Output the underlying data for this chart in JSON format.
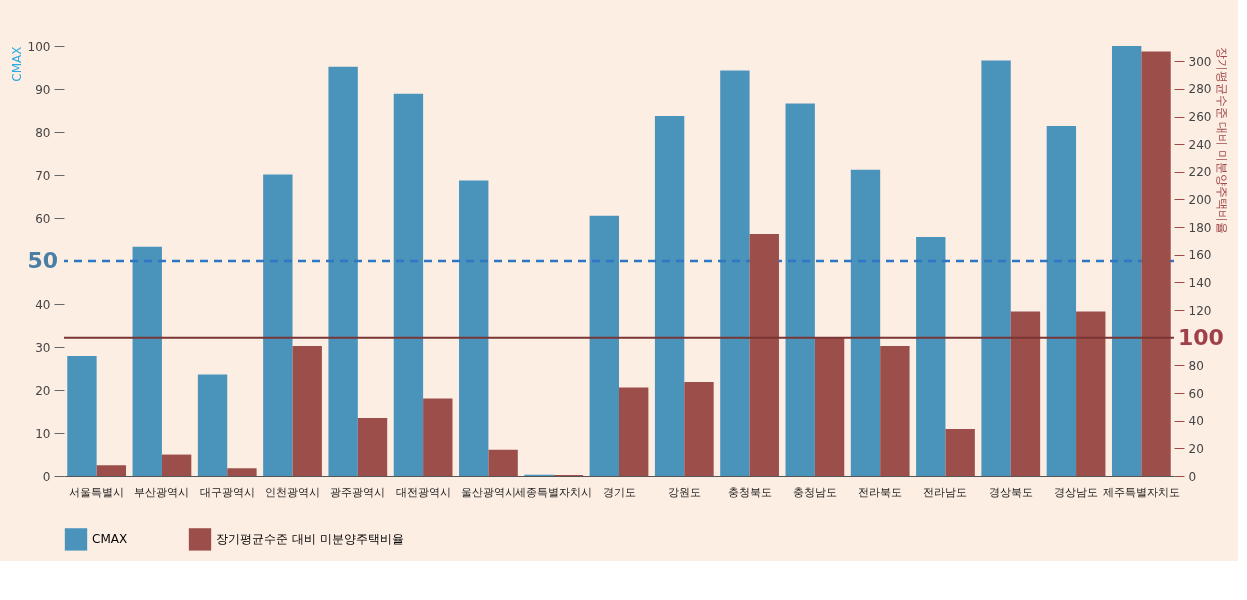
{
  "chart_data": {
    "type": "bar",
    "categories": [
      "서울특별시",
      "부산광역시",
      "대구광역시",
      "인천광역시",
      "광주광역시",
      "대전광역시",
      "울산광역시",
      "세종특별자치시",
      "경기도",
      "강원도",
      "충청북도",
      "충청남도",
      "전라북도",
      "전라남도",
      "경상북도",
      "경상남도",
      "제주특별자치도"
    ],
    "series": [
      {
        "name": "CMAX",
        "color": "#4a94bb",
        "values": [
          27.9,
          53.3,
          23.6,
          70.1,
          95.2,
          88.9,
          68.7,
          0.3,
          60.5,
          83.7,
          94.3,
          86.6,
          71.2,
          55.6,
          96.6,
          81.4,
          100
        ]
      },
      {
        "name": "장기평균수준 대비 미분양주택비율",
        "color": "#9c4f4a",
        "axis": "y2",
        "values": [
          7.8,
          15.5,
          5.6,
          94,
          42,
          56,
          19,
          0.8,
          64,
          68,
          175,
          100,
          94,
          34,
          119,
          119,
          307
        ]
      }
    ],
    "ylabel": "CMAX",
    "y2label": "장기평균수준 대비 미분양주택비율",
    "ylim": [
      0,
      100
    ],
    "yticks": [
      0,
      10,
      20,
      30,
      40,
      60,
      70,
      80,
      90,
      100
    ],
    "y2lim": [
      0,
      311
    ],
    "y2ticks": [
      0,
      20,
      40,
      60,
      80,
      120,
      140,
      160,
      180,
      200,
      220,
      240,
      260,
      280,
      300
    ],
    "ref_lines": [
      {
        "axis": "y",
        "value": 50,
        "label": "50",
        "color": "#2f76c4",
        "line_style": "dashed"
      },
      {
        "axis": "y2",
        "value": 100,
        "label": "100",
        "color": "#7a3535",
        "line_style": "solid"
      }
    ],
    "grid": false,
    "legend": "bottom"
  }
}
